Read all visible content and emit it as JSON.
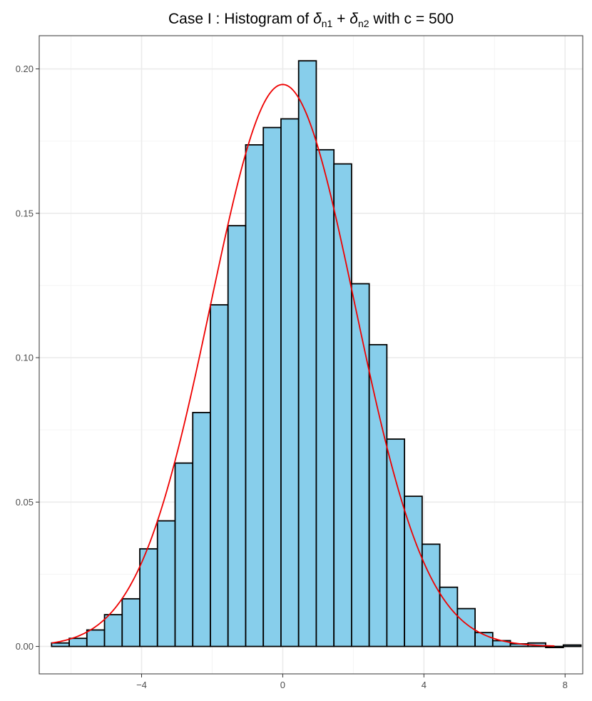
{
  "chart_data": {
    "type": "bar",
    "title": {
      "prefix": "Case I : Histogram of ",
      "sym1": "δ",
      "sub1": "n1",
      "plus": " + ",
      "sym2": "δ",
      "sub2": "n2",
      "suffix": " with c = 500"
    },
    "xlabel": "",
    "ylabel": "",
    "xlim": [
      -6.9,
      8.5
    ],
    "ylim": [
      -0.0095,
      0.2115
    ],
    "x_ticks": [
      -4,
      0,
      4,
      8
    ],
    "x_tick_labels": [
      "−4",
      "0",
      "4",
      "8"
    ],
    "y_ticks": [
      0.0,
      0.05,
      0.1,
      0.15,
      0.2
    ],
    "y_tick_labels": [
      "0.00",
      "0.05",
      "0.10",
      "0.15",
      "0.20"
    ],
    "grid": true,
    "bin_width": 0.5,
    "bin_start": -6.55,
    "bins": [
      {
        "x0": -6.55,
        "x1": -6.05,
        "density": 0.0012
      },
      {
        "x0": -6.05,
        "x1": -5.55,
        "density": 0.0028
      },
      {
        "x0": -5.55,
        "x1": -5.05,
        "density": 0.0057
      },
      {
        "x0": -5.05,
        "x1": -4.55,
        "density": 0.011
      },
      {
        "x0": -4.55,
        "x1": -4.05,
        "density": 0.0165
      },
      {
        "x0": -4.05,
        "x1": -3.55,
        "density": 0.0338
      },
      {
        "x0": -3.55,
        "x1": -3.05,
        "density": 0.0435
      },
      {
        "x0": -3.05,
        "x1": -2.55,
        "density": 0.0635
      },
      {
        "x0": -2.55,
        "x1": -2.05,
        "density": 0.081
      },
      {
        "x0": -2.05,
        "x1": -1.55,
        "density": 0.1183
      },
      {
        "x0": -1.55,
        "x1": -1.05,
        "density": 0.1457
      },
      {
        "x0": -1.05,
        "x1": -0.55,
        "density": 0.1737
      },
      {
        "x0": -0.55,
        "x1": -0.05,
        "density": 0.1797
      },
      {
        "x0": -0.05,
        "x1": 0.45,
        "density": 0.1827
      },
      {
        "x0": 0.45,
        "x1": 0.95,
        "density": 0.2028
      },
      {
        "x0": 0.95,
        "x1": 1.45,
        "density": 0.172
      },
      {
        "x0": 1.45,
        "x1": 1.95,
        "density": 0.1671
      },
      {
        "x0": 1.95,
        "x1": 2.45,
        "density": 0.1256
      },
      {
        "x0": 2.45,
        "x1": 2.95,
        "density": 0.1045
      },
      {
        "x0": 2.95,
        "x1": 3.45,
        "density": 0.0718
      },
      {
        "x0": 3.45,
        "x1": 3.95,
        "density": 0.052
      },
      {
        "x0": 3.95,
        "x1": 4.45,
        "density": 0.0354
      },
      {
        "x0": 4.45,
        "x1": 4.95,
        "density": 0.0205
      },
      {
        "x0": 4.95,
        "x1": 5.45,
        "density": 0.0131
      },
      {
        "x0": 5.45,
        "x1": 5.95,
        "density": 0.0048
      },
      {
        "x0": 5.95,
        "x1": 6.45,
        "density": 0.002
      },
      {
        "x0": 6.45,
        "x1": 6.95,
        "density": 0.0009
      },
      {
        "x0": 6.95,
        "x1": 7.45,
        "density": 0.0012
      },
      {
        "x0": 7.45,
        "x1": 7.95,
        "density": 0.0
      },
      {
        "x0": 7.95,
        "x1": 8.45,
        "density": 0.0005
      }
    ],
    "density_curve": {
      "type": "normal",
      "mean": 0.0,
      "sd": 2.05,
      "x_range": [
        -6.55,
        7.7
      ]
    },
    "colors": {
      "bar_fill": "#87ceeb",
      "bar_stroke": "#000000",
      "curve": "#ee0000",
      "grid_major": "#ebebeb",
      "grid_minor": "#f4f4f4",
      "panel_border": "#333333",
      "tick_label": "#4d4d4d"
    }
  }
}
